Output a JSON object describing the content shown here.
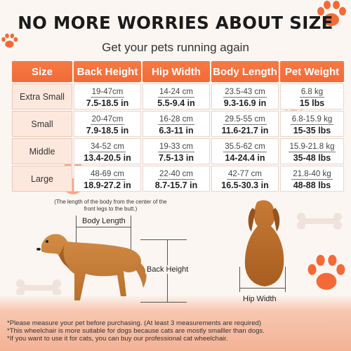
{
  "title": "NO MORE WORRIES ABOUT SIZE",
  "subtitle": "Get your pets running again",
  "table": {
    "headers": [
      "Size",
      "Back Height",
      "Hip Width",
      "Body Length",
      "Pet Weight"
    ],
    "rows": [
      {
        "size": "Extra Small",
        "back_cm": "19-47cm",
        "back_in": "7.5-18.5 in",
        "hip_cm": "14-24 cm",
        "hip_in": "5.5-9.4 in",
        "body_cm": "23.5-43 cm",
        "body_in": "9.3-16.9 in",
        "weight_kg": "6.8 kg",
        "weight_lbs": "15 lbs"
      },
      {
        "size": "Small",
        "back_cm": "20-47cm",
        "back_in": "7.9-18.5 in",
        "hip_cm": "16-28 cm",
        "hip_in": "6.3-11 in",
        "body_cm": "29.5-55 cm",
        "body_in": "11.6-21.7 in",
        "weight_kg": "6.8-15.9 kg",
        "weight_lbs": "15-35 lbs"
      },
      {
        "size": "Middle",
        "back_cm": "34-52 cm",
        "back_in": "13.4-20.5 in",
        "hip_cm": "19-33 cm",
        "hip_in": "7.5-13 in",
        "body_cm": "35.5-62 cm",
        "body_in": "14-24.4 in",
        "weight_kg": "15.9-21.8 kg",
        "weight_lbs": "35-48 lbs"
      },
      {
        "size": "Large",
        "back_cm": "48-69 cm",
        "back_in": "18.9-27.2 in",
        "hip_cm": "22-40 cm",
        "hip_in": "8.7-15.7 in",
        "body_cm": "42-77 cm",
        "body_in": "16.5-30.3 in",
        "weight_kg": "21.8-40 kg",
        "weight_lbs": "48-88 lbs"
      }
    ]
  },
  "diagram": {
    "note": "(The length of the body from the center of the front legs to the butt.)",
    "body_length": "Body Length",
    "back_height": "Back Height",
    "hip_width": "Hip Width"
  },
  "footer": [
    "*Please measure your pet before purchasing. (At least 3 measurements are required)",
    "*This wheelchair is more suitable for dogs because cats are mostly smalller than dogs.",
    "*If you want to use it for cats, you can buy our professional cat wheelchair."
  ],
  "colors": {
    "accent": "#f46a36",
    "header_text": "#ffffff",
    "size_cell": "#fde8de"
  }
}
